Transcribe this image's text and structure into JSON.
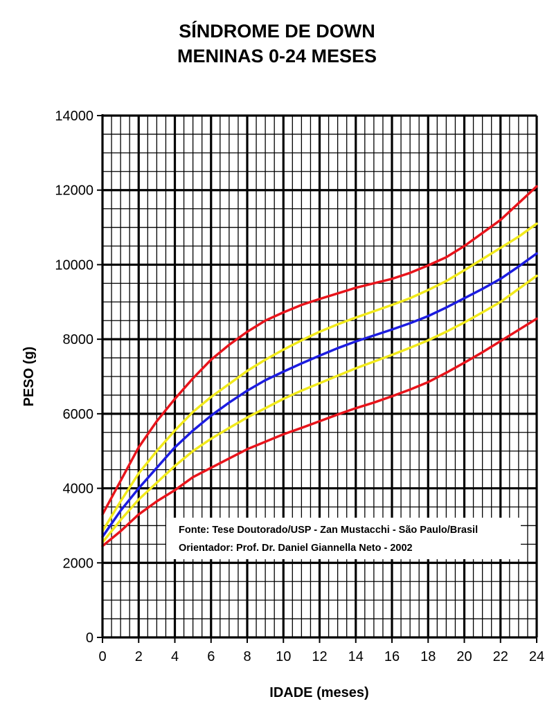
{
  "chart_data": {
    "type": "line",
    "title": "SÍNDROME DE DOWN",
    "subtitle": "MENINAS 0-24 MESES",
    "xlabel": "IDADE (meses)",
    "ylabel": "PESO (g)",
    "xlim": [
      0,
      24
    ],
    "ylim": [
      0,
      14000
    ],
    "x_ticks": [
      "0",
      "2",
      "4",
      "6",
      "8",
      "10",
      "12",
      "14",
      "16",
      "18",
      "20",
      "22",
      "24"
    ],
    "y_ticks": [
      "0",
      "2000",
      "4000",
      "6000",
      "8000",
      "10000",
      "12000",
      "14000"
    ],
    "grid": true,
    "x": [
      0,
      1,
      2,
      3,
      4,
      5,
      6,
      7,
      8,
      9,
      10,
      11,
      12,
      13,
      14,
      15,
      16,
      17,
      18,
      19,
      20,
      21,
      22,
      23,
      24
    ],
    "series": [
      {
        "color": "#e8141b",
        "values": [
          3300,
          4200,
          5100,
          5800,
          6400,
          6950,
          7450,
          7850,
          8200,
          8500,
          8720,
          8920,
          9080,
          9230,
          9380,
          9500,
          9620,
          9780,
          9980,
          10200,
          10500,
          10850,
          11200,
          11650,
          12100
        ]
      },
      {
        "color": "#f2ea1c",
        "values": [
          2850,
          3650,
          4400,
          5000,
          5550,
          6050,
          6450,
          6800,
          7150,
          7450,
          7720,
          7970,
          8200,
          8400,
          8580,
          8750,
          8920,
          9100,
          9320,
          9560,
          9850,
          10150,
          10450,
          10750,
          11100
        ]
      },
      {
        "color": "#1c1ce0",
        "values": [
          2700,
          3400,
          4000,
          4550,
          5100,
          5550,
          5950,
          6300,
          6620,
          6900,
          7130,
          7350,
          7560,
          7760,
          7940,
          8100,
          8260,
          8430,
          8620,
          8850,
          9100,
          9350,
          9620,
          9950,
          10300
        ]
      },
      {
        "color": "#f2ea1c",
        "values": [
          2550,
          3150,
          3700,
          4150,
          4600,
          5000,
          5330,
          5620,
          5900,
          6150,
          6400,
          6620,
          6820,
          7020,
          7220,
          7400,
          7580,
          7770,
          7970,
          8200,
          8450,
          8720,
          9000,
          9350,
          9700
        ]
      },
      {
        "color": "#e8141b",
        "values": [
          2450,
          2850,
          3300,
          3650,
          3950,
          4300,
          4550,
          4800,
          5050,
          5250,
          5450,
          5620,
          5800,
          5980,
          6150,
          6300,
          6470,
          6650,
          6850,
          7100,
          7370,
          7650,
          7950,
          8250,
          8550
        ]
      }
    ]
  },
  "source_box": {
    "line1": "Fonte: Tese Doutorado/USP - Zan Mustacchi - São Paulo/Brasil",
    "line2": "Orientador: Prof. Dr. Daniel Giannella Neto - 2002"
  }
}
